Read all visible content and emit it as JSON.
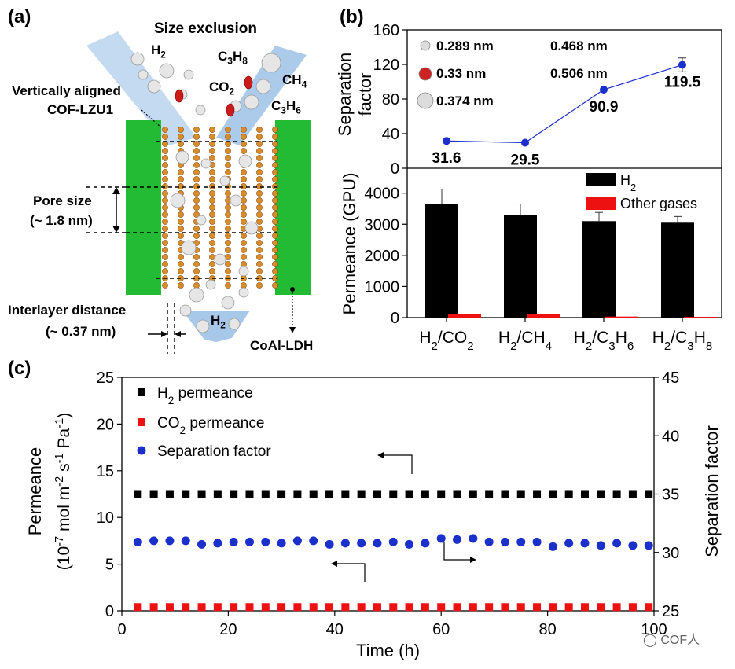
{
  "panel_a": {
    "label": "(a)",
    "title": "Size exclusion",
    "mol_h2": "H",
    "mol_h2_sub": "2",
    "mol_c3h8_a": "C",
    "mol_c3h8_sub1": "3",
    "mol_c3h8_b": "H",
    "mol_c3h8_sub2": "8",
    "mol_co2_a": "CO",
    "mol_co2_sub": "2",
    "mol_ch4_a": "CH",
    "mol_ch4_sub": "4",
    "mol_c3h6_a": "C",
    "mol_c3h6_sub1": "3",
    "mol_c3h6_b": "H",
    "mol_c3h6_sub2": "6",
    "cof_line1": "Vertically aligned",
    "cof_line2": "COF-LZU1",
    "pore_line1": "Pore size",
    "pore_line2": "(~ 1.8 nm)",
    "inter_line1": "Interlayer distance",
    "inter_line2": "(~ 0.37 nm)",
    "h2_out": "H",
    "h2_out_sub": "2",
    "ldh": "CoAl-LDH",
    "colors": {
      "ldh_green": "#22bb33",
      "arrow_blue": "#9ec2e8",
      "chain_orange": "#d98c2a"
    }
  },
  "panel_b": {
    "label": "(b)",
    "legend_sizes": [
      "0.289 nm",
      "0.33 nm",
      "0.374 nm",
      "0.468 nm",
      "0.506 nm"
    ]
  },
  "panel_c": {
    "label": "(c)",
    "arrow_note_left": "←",
    "arrow_note_right": "→"
  },
  "watermark": "COF人",
  "chart_data": [
    {
      "id": "b-top",
      "type": "line",
      "ylabel_line1": "Separation",
      "ylabel_line2": "factor",
      "ylim": [
        0,
        160
      ],
      "yticks": [
        "0",
        "40",
        "80",
        "120",
        "160"
      ],
      "categories": [
        "H2/CO2",
        "H2/CH4",
        "H2/C3H6",
        "H2/C3H8"
      ],
      "values": [
        31.6,
        29.5,
        90.9,
        119.5
      ],
      "value_labels": [
        "31.6",
        "29.5",
        "90.9",
        "119.5"
      ],
      "errors": [
        0,
        0,
        0,
        8
      ],
      "color": "#1a2fcc"
    },
    {
      "id": "b-bottom",
      "type": "bar",
      "ylabel": "Permeance (GPU)",
      "ylim": [
        0,
        4800
      ],
      "yticks": [
        "0",
        "1000",
        "2000",
        "3000",
        "4000"
      ],
      "categories": [
        "H2/CO2",
        "H2/CH4",
        "H2/C3H6",
        "H2/C3H8"
      ],
      "tick_parts": [
        {
          "a": "H",
          "s1": "2",
          "b": "/CO",
          "s2": "2",
          "c": "",
          "s3": ""
        },
        {
          "a": "H",
          "s1": "2",
          "b": "/CH",
          "s2": "4",
          "c": "",
          "s3": ""
        },
        {
          "a": "H",
          "s1": "2",
          "b": "/C",
          "s2": "3",
          "c": "H",
          "s3": "6"
        },
        {
          "a": "H",
          "s1": "2",
          "b": "/C",
          "s2": "3",
          "c": "H",
          "s3": "8"
        }
      ],
      "series": [
        {
          "name": "H2",
          "label_a": "H",
          "label_sub": "2",
          "values": [
            3650,
            3300,
            3100,
            3050
          ],
          "errors": [
            480,
            350,
            280,
            200
          ],
          "color": "#000000"
        },
        {
          "name": "Other gases",
          "label_a": "Other gases",
          "label_sub": "",
          "values": [
            115,
            112,
            34,
            26
          ],
          "errors": [
            0,
            0,
            0,
            0
          ],
          "color": "#ee1111"
        }
      ]
    },
    {
      "id": "c",
      "type": "scatter",
      "xlabel": "Time (h)",
      "ylabel_left_1": "Permeance",
      "ylabel_left_2a": "(10",
      "ylabel_left_2b": "-7",
      "ylabel_left_2c": " mol m",
      "ylabel_left_2d": "-2",
      "ylabel_left_2e": " s",
      "ylabel_left_2f": "-1",
      "ylabel_left_2g": " Pa",
      "ylabel_left_2h": "-1",
      "ylabel_left_2i": ")",
      "ylabel_right": "Separation factor",
      "xlim": [
        0,
        100
      ],
      "ylim_left": [
        0,
        25
      ],
      "ylim_right": [
        25,
        45
      ],
      "xticks": [
        "0",
        "20",
        "40",
        "60",
        "80",
        "100"
      ],
      "yticks_left": [
        "0",
        "5",
        "10",
        "15",
        "20",
        "25"
      ],
      "yticks_right": [
        "25",
        "30",
        "35",
        "40",
        "45"
      ],
      "series": [
        {
          "name": "H2 permeance",
          "label_a": "H",
          "label_sub": "2",
          "label_b": " permeance",
          "axis": "left",
          "marker": "square",
          "color": "#000000",
          "x": [
            3,
            6,
            9,
            12,
            15,
            18,
            21,
            24,
            27,
            30,
            33,
            36,
            39,
            42,
            45,
            48,
            51,
            54,
            57,
            60,
            63,
            66,
            69,
            72,
            75,
            78,
            81,
            84,
            87,
            90,
            93,
            96,
            99
          ],
          "y": [
            12.5,
            12.5,
            12.5,
            12.5,
            12.5,
            12.5,
            12.5,
            12.5,
            12.5,
            12.5,
            12.5,
            12.5,
            12.5,
            12.5,
            12.5,
            12.5,
            12.5,
            12.5,
            12.5,
            12.5,
            12.5,
            12.5,
            12.5,
            12.5,
            12.5,
            12.5,
            12.5,
            12.5,
            12.5,
            12.5,
            12.5,
            12.5,
            12.5
          ]
        },
        {
          "name": "CO2 permeance",
          "label_a": "CO",
          "label_sub": "2",
          "label_b": " permeance",
          "axis": "left",
          "marker": "square",
          "color": "#ee1111",
          "x": [
            3,
            6,
            9,
            12,
            15,
            18,
            21,
            24,
            27,
            30,
            33,
            36,
            39,
            42,
            45,
            48,
            51,
            54,
            57,
            60,
            63,
            66,
            69,
            72,
            75,
            78,
            81,
            84,
            87,
            90,
            93,
            96,
            99
          ],
          "y": [
            0.4,
            0.4,
            0.4,
            0.4,
            0.4,
            0.4,
            0.4,
            0.4,
            0.4,
            0.4,
            0.4,
            0.4,
            0.4,
            0.4,
            0.4,
            0.4,
            0.4,
            0.4,
            0.4,
            0.4,
            0.4,
            0.4,
            0.4,
            0.4,
            0.4,
            0.4,
            0.4,
            0.4,
            0.4,
            0.4,
            0.4,
            0.4,
            0.4
          ]
        },
        {
          "name": "Separation factor",
          "label_a": "Separation factor",
          "label_sub": "",
          "label_b": "",
          "axis": "right",
          "marker": "circle",
          "color": "#1a2fcc",
          "x": [
            3,
            6,
            9,
            12,
            15,
            18,
            21,
            24,
            27,
            30,
            33,
            36,
            39,
            42,
            45,
            48,
            51,
            54,
            57,
            60,
            63,
            66,
            69,
            72,
            75,
            78,
            81,
            84,
            87,
            90,
            93,
            96,
            99
          ],
          "y": [
            30.9,
            31.0,
            31.0,
            31.0,
            30.7,
            30.8,
            30.9,
            30.9,
            30.9,
            30.8,
            31.0,
            31.0,
            30.7,
            30.8,
            30.8,
            30.8,
            30.9,
            30.7,
            30.8,
            31.2,
            31.1,
            31.2,
            30.9,
            30.9,
            30.9,
            30.9,
            30.5,
            30.8,
            30.8,
            30.6,
            30.8,
            30.6,
            30.6
          ]
        }
      ]
    }
  ]
}
